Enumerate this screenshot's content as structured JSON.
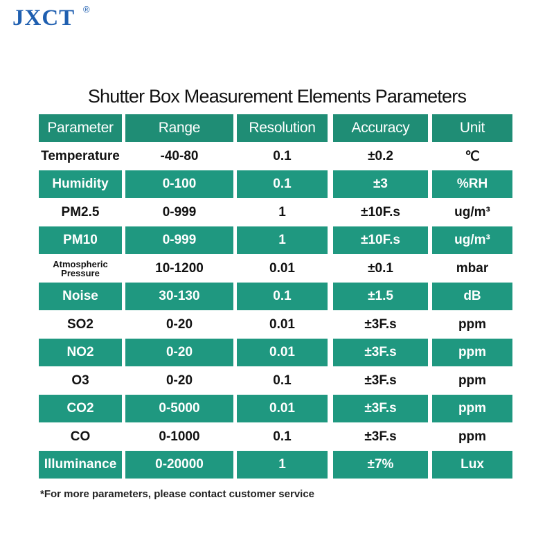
{
  "logo": {
    "text": "JXCT",
    "reg": "®"
  },
  "title": "Shutter Box Measurement Elements Parameters",
  "table": {
    "headers": [
      "Parameter",
      "Range",
      "Resolution",
      "Accuracy",
      "Unit"
    ],
    "rows": [
      {
        "parameter": "Temperature",
        "range": "-40-80",
        "resolution": "0.1",
        "accuracy": "±0.2",
        "unit": "℃",
        "shaded": false
      },
      {
        "parameter": "Humidity",
        "range": "0-100",
        "resolution": "0.1",
        "accuracy": "±3",
        "unit": "%RH",
        "shaded": true
      },
      {
        "parameter": "PM2.5",
        "range": "0-999",
        "resolution": "1",
        "accuracy": "±10F.s",
        "unit": "ug/m³",
        "shaded": false
      },
      {
        "parameter": "PM10",
        "range": "0-999",
        "resolution": "1",
        "accuracy": "±10F.s",
        "unit": "ug/m³",
        "shaded": true
      },
      {
        "parameter": "Atmospheric Pressure",
        "range": "10-1200",
        "resolution": "0.01",
        "accuracy": "±0.1",
        "unit": "mbar",
        "shaded": false
      },
      {
        "parameter": "Noise",
        "range": "30-130",
        "resolution": "0.1",
        "accuracy": "±1.5",
        "unit": "dB",
        "shaded": true
      },
      {
        "parameter": "SO2",
        "range": "0-20",
        "resolution": "0.01",
        "accuracy": "±3F.s",
        "unit": "ppm",
        "shaded": false
      },
      {
        "parameter": "NO2",
        "range": "0-20",
        "resolution": "0.01",
        "accuracy": "±3F.s",
        "unit": "ppm",
        "shaded": true
      },
      {
        "parameter": "O3",
        "range": "0-20",
        "resolution": "0.1",
        "accuracy": "±3F.s",
        "unit": "ppm",
        "shaded": false
      },
      {
        "parameter": "CO2",
        "range": "0-5000",
        "resolution": "0.01",
        "accuracy": "±3F.s",
        "unit": "ppm",
        "shaded": true
      },
      {
        "parameter": "CO",
        "range": "0-1000",
        "resolution": "0.1",
        "accuracy": "±3F.s",
        "unit": "ppm",
        "shaded": false
      },
      {
        "parameter": "Illuminance",
        "range": "0-20000",
        "resolution": "1",
        "accuracy": "±7%",
        "unit": "Lux",
        "shaded": true
      }
    ]
  },
  "footnote": "*For more parameters, please contact customer service",
  "colors": {
    "header": "#1f8d75",
    "row_shade": "#1f9880",
    "logo": "#1f5fb0"
  }
}
